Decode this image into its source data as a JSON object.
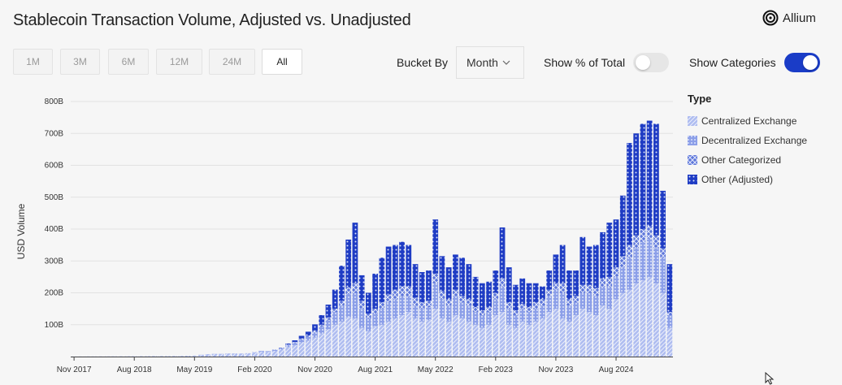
{
  "title": "Stablecoin Transaction Volume, Adjusted vs. Unadjusted",
  "brand": {
    "name": "Allium",
    "logo_icon": "allium-logo-icon"
  },
  "range_buttons": [
    {
      "label": "1M",
      "active": false
    },
    {
      "label": "3M",
      "active": false
    },
    {
      "label": "6M",
      "active": false
    },
    {
      "label": "12M",
      "active": false
    },
    {
      "label": "24M",
      "active": false
    },
    {
      "label": "All",
      "active": true
    }
  ],
  "controls": {
    "bucket_label": "Bucket By",
    "bucket_value": "Month",
    "show_pct_label": "Show % of Total",
    "show_pct_on": false,
    "show_categories_label": "Show Categories",
    "show_categories_on": true
  },
  "colors": {
    "accent": "#1a3cc7",
    "centralized": "#a9b8ef",
    "decentralized": "#8b9ee8",
    "other_categorized": "#5f78db",
    "other_adjusted": "#1f3cc4"
  },
  "chart_data": {
    "type": "bar",
    "stacked": true,
    "title": "",
    "xlabel": "",
    "ylabel": "USD Volume",
    "ylim": [
      0,
      800
    ],
    "yunit": "B",
    "yticks": [
      "100B",
      "200B",
      "300B",
      "400B",
      "500B",
      "600B",
      "700B",
      "800B"
    ],
    "grid": true,
    "legend_position": "right",
    "legend_title": "Type",
    "x_tick_labels": [
      "Nov 2017",
      "Aug 2018",
      "May 2019",
      "Feb 2020",
      "Nov 2020",
      "Aug 2021",
      "May 2022",
      "Feb 2023",
      "Nov 2023",
      "Aug 2024"
    ],
    "months_start": "2017-11",
    "categories": [
      "2017-11",
      "2017-12",
      "2018-01",
      "2018-02",
      "2018-03",
      "2018-04",
      "2018-05",
      "2018-06",
      "2018-07",
      "2018-08",
      "2018-09",
      "2018-10",
      "2018-11",
      "2018-12",
      "2019-01",
      "2019-02",
      "2019-03",
      "2019-04",
      "2019-05",
      "2019-06",
      "2019-07",
      "2019-08",
      "2019-09",
      "2019-10",
      "2019-11",
      "2019-12",
      "2020-01",
      "2020-02",
      "2020-03",
      "2020-04",
      "2020-05",
      "2020-06",
      "2020-07",
      "2020-08",
      "2020-09",
      "2020-10",
      "2020-11",
      "2020-12",
      "2021-01",
      "2021-02",
      "2021-03",
      "2021-04",
      "2021-05",
      "2021-06",
      "2021-07",
      "2021-08",
      "2021-09",
      "2021-10",
      "2021-11",
      "2021-12",
      "2022-01",
      "2022-02",
      "2022-03",
      "2022-04",
      "2022-05",
      "2022-06",
      "2022-07",
      "2022-08",
      "2022-09",
      "2022-10",
      "2022-11",
      "2022-12",
      "2023-01",
      "2023-02",
      "2023-03",
      "2023-04",
      "2023-05",
      "2023-06",
      "2023-07",
      "2023-08",
      "2023-09",
      "2023-10",
      "2023-11",
      "2023-12",
      "2024-01",
      "2024-02",
      "2024-03",
      "2024-04",
      "2024-05",
      "2024-06",
      "2024-07",
      "2024-08",
      "2024-09",
      "2024-10",
      "2024-11",
      "2024-12",
      "2025-01",
      "2025-02",
      "2025-03",
      "2025-04"
    ],
    "series": [
      {
        "name": "Centralized Exchange",
        "values": [
          0.3,
          0.4,
          0.5,
          0.5,
          0.6,
          0.7,
          0.8,
          0.9,
          1,
          1,
          1.2,
          1.3,
          1.5,
          1.6,
          1.6,
          1.7,
          2,
          2.5,
          3,
          5,
          7,
          8,
          8,
          9,
          9,
          9,
          10,
          13,
          16,
          15,
          18,
          22,
          30,
          36,
          44,
          50,
          60,
          72,
          85,
          100,
          110,
          125,
          120,
          90,
          80,
          95,
          100,
          110,
          120,
          130,
          140,
          120,
          110,
          115,
          150,
          120,
          110,
          130,
          120,
          110,
          100,
          90,
          100,
          130,
          140,
          100,
          90,
          110,
          100,
          110,
          120,
          140,
          150,
          120,
          110,
          130,
          150,
          140,
          130,
          160,
          150,
          180,
          200,
          210,
          230,
          240,
          250,
          230,
          200,
          90
        ]
      },
      {
        "name": "Decentralized Exchange",
        "values": [
          0,
          0,
          0,
          0,
          0,
          0,
          0,
          0,
          0,
          0,
          0,
          0,
          0,
          0,
          0,
          0,
          0,
          0,
          0,
          0.5,
          0.5,
          0.5,
          0.5,
          0.5,
          0.5,
          0.5,
          0.5,
          1,
          2,
          2,
          3,
          4,
          6,
          8,
          10,
          12,
          16,
          22,
          30,
          40,
          50,
          70,
          80,
          60,
          40,
          40,
          50,
          60,
          60,
          60,
          50,
          40,
          40,
          40,
          80,
          60,
          50,
          60,
          50,
          50,
          40,
          40,
          40,
          50,
          80,
          50,
          40,
          40,
          40,
          40,
          40,
          50,
          60,
          80,
          50,
          40,
          50,
          60,
          60,
          60,
          70,
          70,
          80,
          100,
          110,
          120,
          120,
          110,
          110,
          40
        ]
      },
      {
        "name": "Other Categorized",
        "values": [
          0,
          0,
          0,
          0,
          0,
          0,
          0,
          0,
          0,
          0,
          0,
          0,
          0,
          0,
          0,
          0,
          0,
          0,
          0,
          0,
          0,
          0,
          0,
          0,
          0,
          0,
          0,
          0,
          0,
          0,
          1,
          1,
          2,
          2,
          3,
          4,
          5,
          6,
          8,
          10,
          15,
          22,
          30,
          25,
          15,
          15,
          20,
          25,
          30,
          30,
          30,
          25,
          20,
          20,
          30,
          25,
          20,
          20,
          20,
          20,
          15,
          15,
          15,
          20,
          25,
          20,
          15,
          15,
          15,
          20,
          20,
          20,
          20,
          30,
          20,
          20,
          25,
          25,
          25,
          25,
          30,
          30,
          35,
          40,
          40,
          40,
          40,
          40,
          30,
          10
        ]
      },
      {
        "name": "Other (Adjusted)",
        "values": [
          0,
          0,
          0,
          0,
          0,
          0,
          0,
          0,
          0,
          0,
          0,
          0,
          0,
          0,
          0,
          0,
          0,
          0,
          0,
          0,
          0,
          0,
          0,
          0,
          0,
          0,
          0,
          0,
          0,
          0,
          0,
          1,
          3,
          5,
          8,
          12,
          20,
          30,
          40,
          60,
          110,
          150,
          190,
          80,
          65,
          110,
          140,
          150,
          140,
          140,
          130,
          105,
          95,
          95,
          170,
          110,
          100,
          110,
          120,
          110,
          95,
          85,
          80,
          70,
          160,
          110,
          80,
          80,
          75,
          60,
          40,
          60,
          90,
          120,
          90,
          80,
          150,
          120,
          135,
          145,
          170,
          150,
          190,
          320,
          320,
          330,
          330,
          350,
          180,
          150
        ]
      }
    ]
  }
}
